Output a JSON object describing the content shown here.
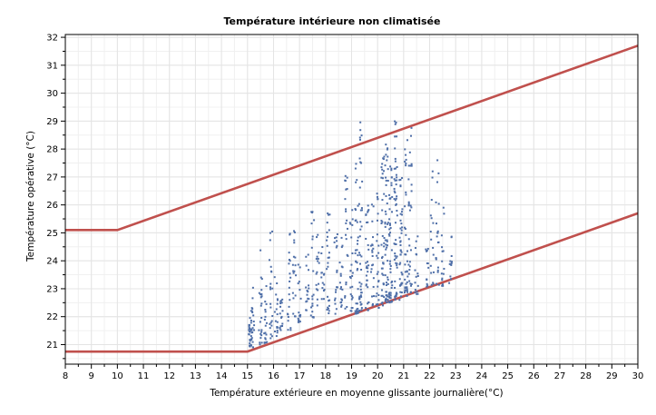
{
  "chart_data": {
    "type": "scatter",
    "title": "Température intérieure non climatisée",
    "xlabel": "Température extérieure en moyenne glissante journalière(°C)",
    "ylabel": "Température opérative (°C)",
    "xlim": [
      8,
      30
    ],
    "ylim": [
      20.3,
      32.1
    ],
    "x_ticks": [
      8,
      9,
      10,
      11,
      12,
      13,
      14,
      15,
      16,
      17,
      18,
      19,
      20,
      21,
      22,
      23,
      24,
      25,
      26,
      27,
      28,
      29,
      30
    ],
    "y_ticks": [
      21,
      22,
      23,
      24,
      25,
      26,
      27,
      28,
      29,
      30,
      31,
      32
    ],
    "grid": true,
    "legend": "none",
    "colors": {
      "limits": "#c0504d",
      "points": "#4f6fa8",
      "grid": "#e4e4e4"
    },
    "limit_lines": [
      {
        "x": [
          8,
          10,
          30
        ],
        "y": [
          25.1,
          25.1,
          31.7
        ]
      },
      {
        "x": [
          8,
          15,
          30
        ],
        "y": [
          20.75,
          20.75,
          25.7
        ]
      }
    ],
    "scatter_clusters": [
      {
        "x": 15.1,
        "ymin": 20.9,
        "ymax": 22.0,
        "n": 25
      },
      {
        "x": 15.2,
        "ymin": 20.9,
        "ymax": 23.4,
        "n": 20
      },
      {
        "x": 15.5,
        "ymin": 21.0,
        "ymax": 24.4,
        "n": 22
      },
      {
        "x": 15.7,
        "ymin": 21.0,
        "ymax": 23.2,
        "n": 18
      },
      {
        "x": 15.9,
        "ymin": 21.2,
        "ymax": 25.5,
        "n": 22
      },
      {
        "x": 16.1,
        "ymin": 21.3,
        "ymax": 23.5,
        "n": 18
      },
      {
        "x": 16.3,
        "ymin": 21.5,
        "ymax": 23.0,
        "n": 16
      },
      {
        "x": 16.6,
        "ymin": 21.5,
        "ymax": 25.1,
        "n": 20
      },
      {
        "x": 16.8,
        "ymin": 22.0,
        "ymax": 25.1,
        "n": 18
      },
      {
        "x": 17.0,
        "ymin": 21.8,
        "ymax": 24.5,
        "n": 16
      },
      {
        "x": 17.3,
        "ymin": 22.2,
        "ymax": 24.5,
        "n": 16
      },
      {
        "x": 17.5,
        "ymin": 21.8,
        "ymax": 26.0,
        "n": 20
      },
      {
        "x": 17.7,
        "ymin": 22.4,
        "ymax": 25.1,
        "n": 16
      },
      {
        "x": 17.9,
        "ymin": 22.6,
        "ymax": 24.8,
        "n": 14
      },
      {
        "x": 18.1,
        "ymin": 22.0,
        "ymax": 26.4,
        "n": 24
      },
      {
        "x": 18.4,
        "ymin": 22.1,
        "ymax": 25.0,
        "n": 18
      },
      {
        "x": 18.6,
        "ymin": 22.3,
        "ymax": 24.9,
        "n": 18
      },
      {
        "x": 18.8,
        "ymin": 22.2,
        "ymax": 27.5,
        "n": 22
      },
      {
        "x": 19.0,
        "ymin": 22.2,
        "ymax": 26.0,
        "n": 24
      },
      {
        "x": 19.2,
        "ymin": 22.1,
        "ymax": 28.3,
        "n": 38
      },
      {
        "x": 19.35,
        "ymin": 22.2,
        "ymax": 29.2,
        "n": 42
      },
      {
        "x": 19.6,
        "ymin": 22.2,
        "ymax": 26.0,
        "n": 30
      },
      {
        "x": 19.8,
        "ymin": 22.4,
        "ymax": 26.5,
        "n": 22
      },
      {
        "x": 20.0,
        "ymin": 22.3,
        "ymax": 26.9,
        "n": 26
      },
      {
        "x": 20.2,
        "ymin": 22.4,
        "ymax": 28.0,
        "n": 40
      },
      {
        "x": 20.35,
        "ymin": 22.5,
        "ymax": 28.5,
        "n": 48
      },
      {
        "x": 20.5,
        "ymin": 22.5,
        "ymax": 27.5,
        "n": 50
      },
      {
        "x": 20.7,
        "ymin": 22.6,
        "ymax": 29.0,
        "n": 52
      },
      {
        "x": 20.9,
        "ymin": 22.6,
        "ymax": 27.0,
        "n": 40
      },
      {
        "x": 21.1,
        "ymin": 22.7,
        "ymax": 28.5,
        "n": 36
      },
      {
        "x": 21.25,
        "ymin": 22.8,
        "ymax": 29.1,
        "n": 30
      },
      {
        "x": 21.5,
        "ymin": 22.8,
        "ymax": 25.2,
        "n": 16
      },
      {
        "x": 21.9,
        "ymin": 23.0,
        "ymax": 24.5,
        "n": 12
      },
      {
        "x": 22.1,
        "ymin": 23.0,
        "ymax": 27.4,
        "n": 16
      },
      {
        "x": 22.3,
        "ymin": 23.1,
        "ymax": 28.0,
        "n": 20
      },
      {
        "x": 22.5,
        "ymin": 23.1,
        "ymax": 26.0,
        "n": 16
      },
      {
        "x": 22.8,
        "ymin": 23.2,
        "ymax": 25.1,
        "n": 12
      }
    ]
  }
}
